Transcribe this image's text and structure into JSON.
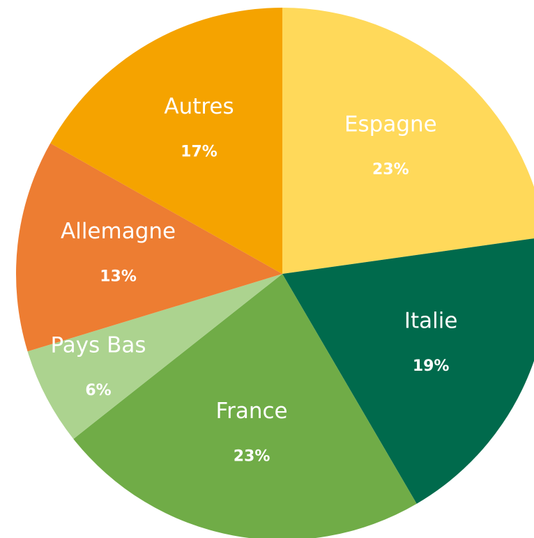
{
  "chart_data": {
    "type": "pie",
    "categories": [
      "Espagne",
      "Italie",
      "France",
      "Pays Bas",
      "Allemagne",
      "Autres"
    ],
    "values": [
      23,
      19,
      23,
      6,
      13,
      17
    ],
    "value_labels": [
      "23%",
      "19%",
      "23%",
      "6%",
      "13%",
      "17%"
    ],
    "colors": [
      "#ffd95a",
      "#006a4c",
      "#70ac47",
      "#acd38f",
      "#ed7d32",
      "#f5a300"
    ]
  }
}
